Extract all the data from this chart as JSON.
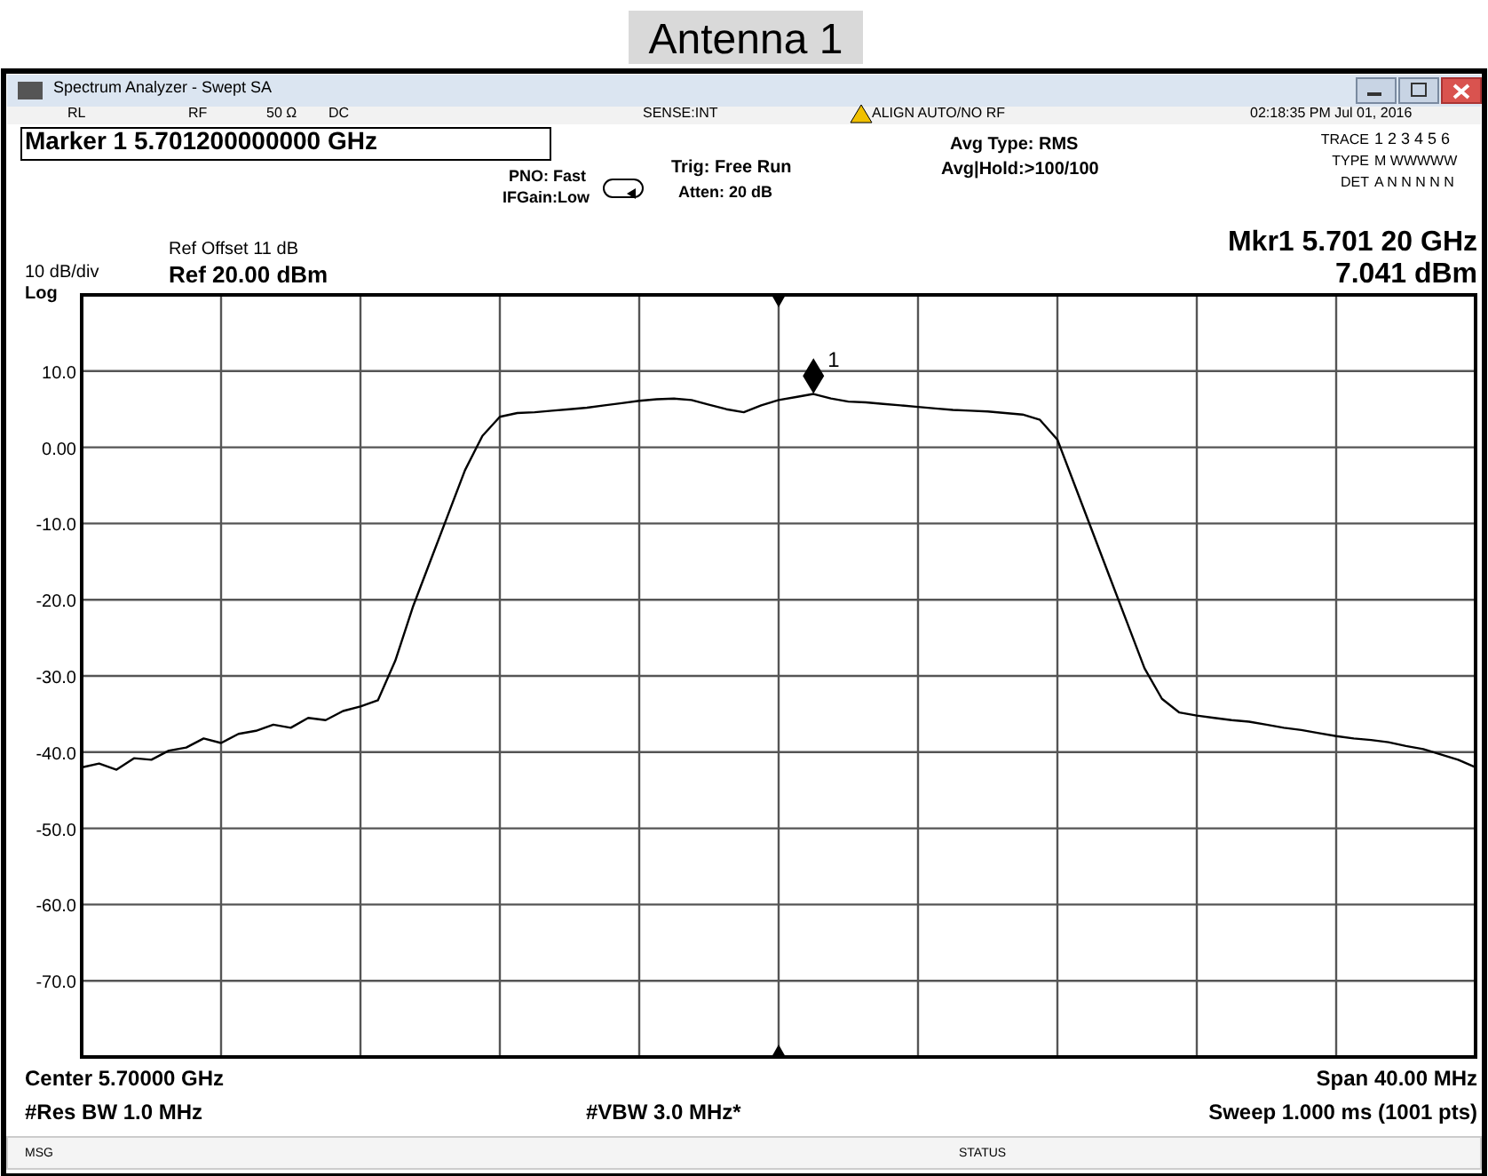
{
  "chart_data": {
    "type": "line",
    "title": "Antenna 1",
    "categories": [
      null,
      null,
      null,
      null,
      null,
      null,
      null,
      null,
      null,
      null,
      null,
      null,
      null,
      null,
      null,
      null,
      null,
      null,
      null,
      null,
      null,
      null,
      null,
      null,
      null,
      null,
      null,
      null,
      null,
      null,
      null,
      null,
      null,
      null,
      null,
      null,
      null,
      null,
      null,
      null,
      null,
      null,
      null,
      null,
      null,
      null,
      null,
      null,
      null,
      null,
      null,
      null,
      null,
      null,
      null,
      null,
      null,
      null,
      null,
      null,
      null,
      null,
      null,
      null,
      null,
      null,
      null,
      null,
      null,
      null,
      null,
      null,
      null,
      null,
      null,
      null,
      null,
      null,
      null,
      null,
      null
    ],
    "series": [
      {
        "color": "#000000",
        "values": [
          -42,
          -41.5,
          -42.3,
          -40.8,
          -41,
          -39.8,
          -39.4,
          -38.2,
          -38.8,
          -37.6,
          -37.2,
          -36.4,
          -36.8,
          -35.5,
          -35.8,
          -34.6,
          -34,
          -33.2,
          -28,
          -21,
          -15,
          -9,
          -3,
          1.5,
          4,
          4.5,
          4.6,
          4.8,
          5,
          5.2,
          5.5,
          5.8,
          6.1,
          6.3,
          6.4,
          6.2,
          5.6,
          5,
          4.6,
          5.5,
          6.2,
          6.6,
          7,
          6.4,
          6,
          5.9,
          5.7,
          5.5,
          5.3,
          5.1,
          4.9,
          4.8,
          4.7,
          4.5,
          4.3,
          3.6,
          1,
          -5,
          -11,
          -17,
          -23,
          -29,
          -33,
          -34.8,
          -35.2,
          -35.5,
          -35.8,
          -36,
          -36.4,
          -36.8,
          -37.1,
          -37.5,
          -37.9,
          -38.2,
          -38.4,
          -38.7,
          -39.2,
          -39.6,
          -40.3,
          -41,
          -42
        ]
      }
    ],
    "tick_labels": "y",
    "ylim": [
      -80,
      20
    ],
    "yticks": [
      {
        "value": 20,
        "label": null
      },
      {
        "value": 10,
        "label": "10.0"
      },
      {
        "value": 0,
        "label": "0.00"
      },
      {
        "value": -10,
        "label": "-10.0"
      },
      {
        "value": -20,
        "label": "-20.0"
      },
      {
        "value": -30,
        "label": "-30.0"
      },
      {
        "value": -40,
        "label": "-40.0"
      },
      {
        "value": -50,
        "label": "-50.0"
      },
      {
        "value": -60,
        "label": "-60.0"
      },
      {
        "value": -70,
        "label": "-70.0"
      },
      {
        "value": -80,
        "label": null
      }
    ],
    "grid": true,
    "annotations": [
      {
        "text": "1",
        "y": 7.041
      },
      "Spectrum Analyzer - Swept SA",
      "RL",
      "RF",
      "50 Ω",
      "DC",
      "SENSE:INT",
      "ALIGN AUTO/NO RF",
      "02:18:35 PM Jul 01, 2016",
      "Marker 1 5.701200000000 GHz",
      "PNO: Fast",
      "IFGain:Low",
      "Trig: Free Run",
      "Atten: 20 dB",
      "Avg Type: RMS",
      "Avg|Hold:>100/100",
      "TRACE",
      "1 2 3 4 5 6",
      "TYPE",
      "M WWWWW",
      "DET",
      "A N N N N N",
      "Ref Offset 11 dB",
      "10 dB/div",
      "Ref 20.00 dBm",
      "Log",
      "Mkr1 5.701 20 GHz",
      "7.041 dBm",
      "Center 5.70000 GHz",
      "#Res BW 1.0 MHz",
      "#VBW 3.0 MHz*",
      "Span 40.00 MHz",
      "Sweep  1.000 ms (1001 pts)",
      "MSG",
      "STATUS"
    ]
  }
}
